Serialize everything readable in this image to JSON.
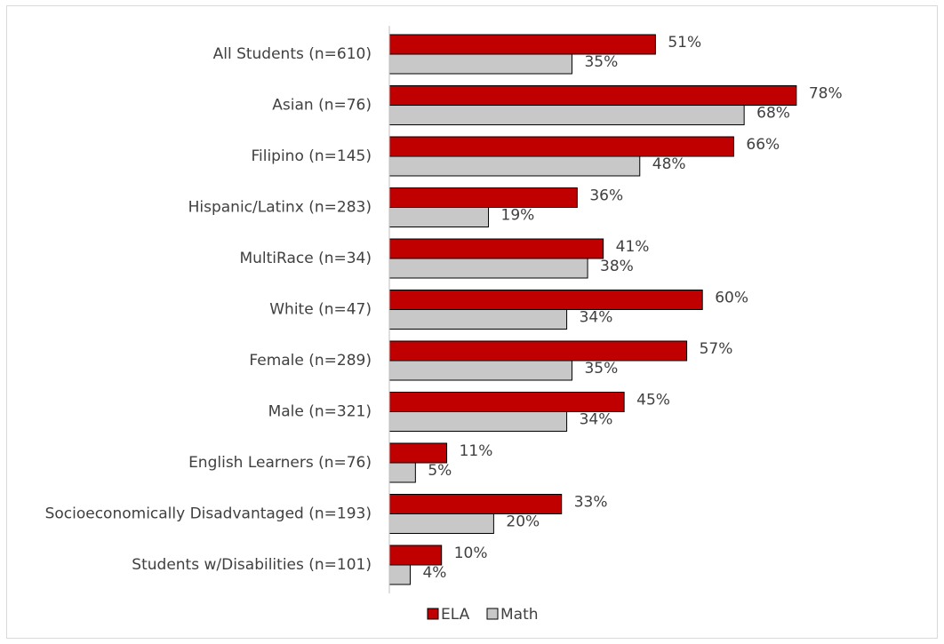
{
  "chart_data": {
    "type": "bar",
    "orientation": "horizontal",
    "categories": [
      "All Students (n=610)",
      "Asian (n=76)",
      "Filipino (n=145)",
      "Hispanic/Latinx (n=283)",
      "MultiRace (n=34)",
      "White (n=47)",
      "Female (n=289)",
      "Male (n=321)",
      "English Learners (n=76)",
      "Socioeconomically Disadvantaged (n=193)",
      "Students w/Disabilities (n=101)"
    ],
    "series": [
      {
        "name": "ELA",
        "color": "#c00000",
        "values": [
          51,
          78,
          66,
          36,
          41,
          60,
          57,
          45,
          11,
          33,
          10
        ],
        "labels": [
          "51%",
          "78%",
          "66%",
          "36%",
          "41%",
          "60%",
          "57%",
          "45%",
          "11%",
          "33%",
          "10%"
        ]
      },
      {
        "name": "Math",
        "color": "#c8c8c8",
        "values": [
          35,
          68,
          48,
          19,
          38,
          34,
          35,
          34,
          5,
          20,
          4
        ],
        "labels": [
          "35%",
          "68%",
          "48%",
          "19%",
          "38%",
          "34%",
          "35%",
          "34%",
          "5%",
          "20%",
          "4%"
        ]
      }
    ],
    "xlim": [
      0,
      100
    ],
    "grid": false,
    "legend_position": "bottom"
  }
}
